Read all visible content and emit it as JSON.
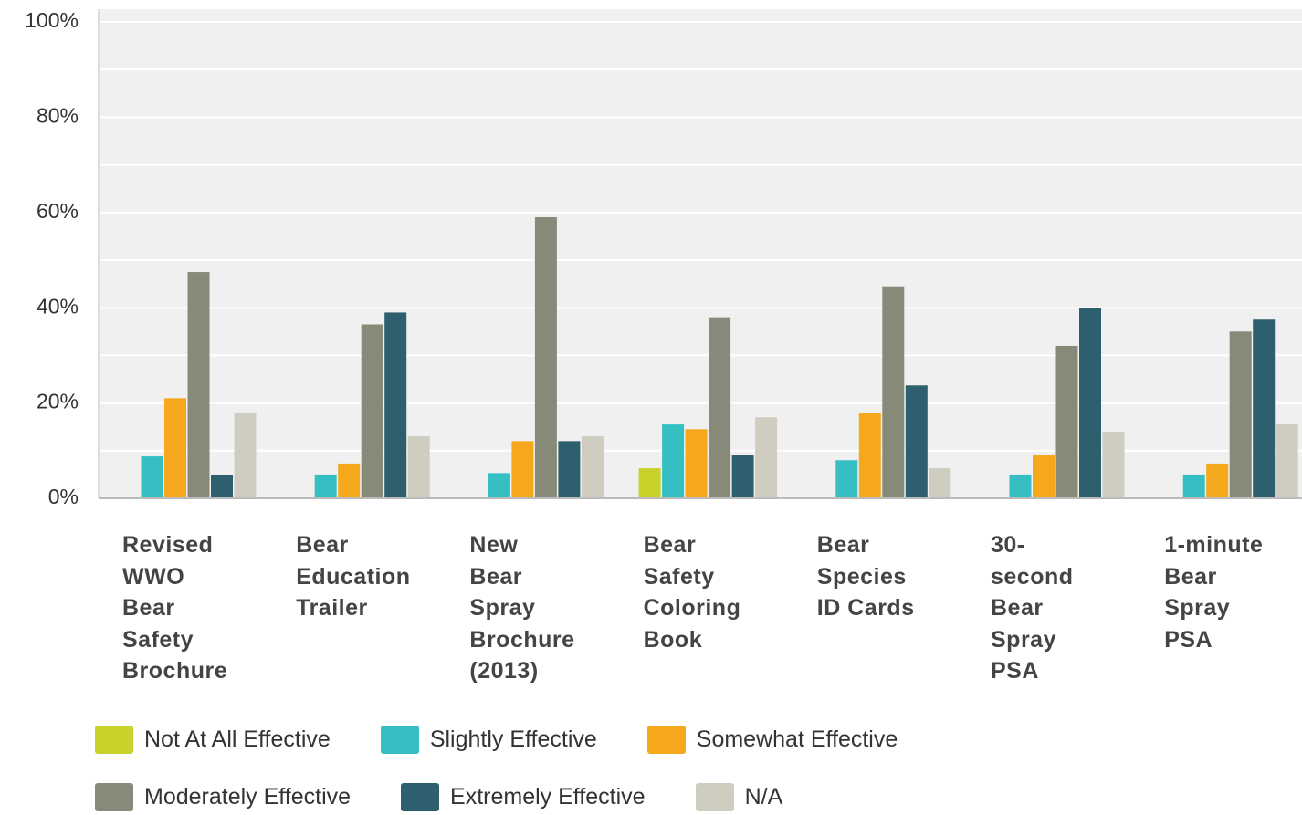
{
  "chart_data": {
    "type": "bar",
    "categories": [
      "Revised\nWWO\nBear\nSafety\nBrochure",
      "Bear\nEducation\nTrailer",
      "New\nBear\nSpray\nBrochure\n(2013)",
      "Bear\nSafety\nColoring\nBook",
      "Bear\nSpecies\nID Cards",
      "30-\nsecond\nBear\nSpray\nPSA",
      "1-minute\nBear\nSpray\nPSA"
    ],
    "series": [
      {
        "name": "Not At All Effective",
        "color": "#c9d22a",
        "values": [
          0,
          0,
          0,
          6.3,
          0,
          0,
          0
        ]
      },
      {
        "name": "Slightly Effective",
        "color": "#36bfc2",
        "values": [
          8.8,
          5,
          5.3,
          15.5,
          8,
          5,
          5
        ]
      },
      {
        "name": "Somewhat Effective",
        "color": "#f5a81c",
        "values": [
          21,
          7.3,
          12,
          14.5,
          18,
          9,
          7.3
        ]
      },
      {
        "name": "Moderately Effective",
        "color": "#878a78",
        "values": [
          47.5,
          36.5,
          59,
          38,
          44.5,
          32,
          35
        ]
      },
      {
        "name": "Extremely Effective",
        "color": "#2e5f6e",
        "values": [
          4.8,
          39,
          12,
          9,
          23.7,
          40,
          37.5
        ]
      },
      {
        "name": "N/A",
        "color": "#cfcdbf",
        "values": [
          18,
          13,
          13,
          17,
          6.3,
          14,
          15.5
        ]
      }
    ],
    "ylim": [
      0,
      100
    ],
    "yticks": [
      {
        "value": 0,
        "label": "0%"
      },
      {
        "value": 20,
        "label": "20%"
      },
      {
        "value": 40,
        "label": "40%"
      },
      {
        "value": 60,
        "label": "60%"
      },
      {
        "value": 80,
        "label": "80%"
      },
      {
        "value": 100,
        "label": "100%"
      }
    ],
    "minor_yticks": [
      10,
      30,
      50,
      70,
      90
    ],
    "grid": true,
    "legend": "bottom"
  }
}
